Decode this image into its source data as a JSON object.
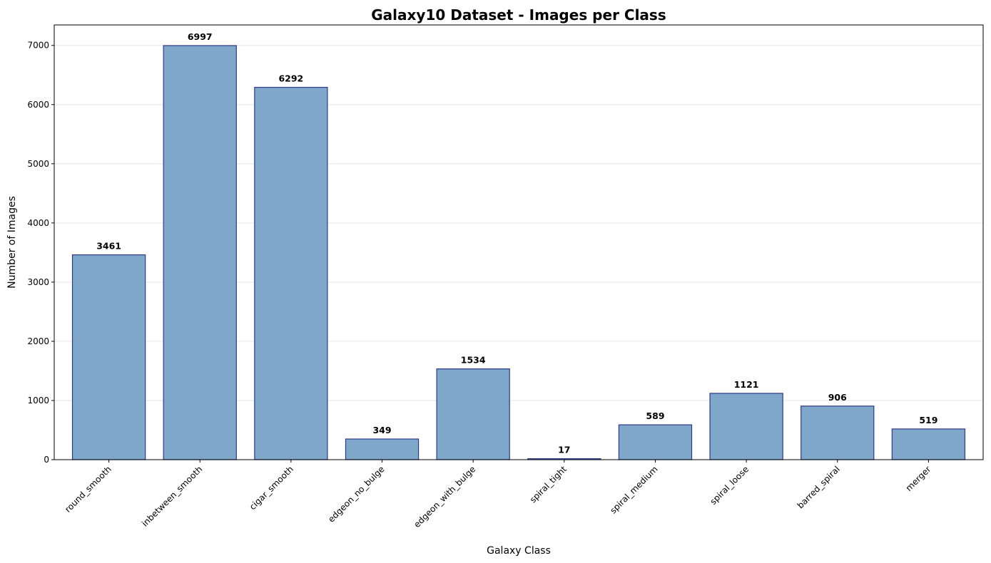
{
  "chart_data": {
    "type": "bar",
    "title": "Galaxy10 Dataset - Images per Class",
    "xlabel": "Galaxy Class",
    "ylabel": "Number of Images",
    "categories": [
      "round_smooth",
      "inbetween_smooth",
      "cigar_smooth",
      "edgeon_no_bulge",
      "edgeon_with_bulge",
      "spiral_tight",
      "spiral_medium",
      "spiral_loose",
      "barred_spiral",
      "merger"
    ],
    "values": [
      3461,
      6997,
      6292,
      349,
      1534,
      17,
      589,
      1121,
      906,
      519
    ],
    "ylim": [
      0,
      7346
    ],
    "yticks": [
      0,
      1000,
      2000,
      3000,
      4000,
      5000,
      6000,
      7000
    ],
    "grid": "y",
    "legend": "none",
    "colors": {
      "bar_fill": "#7ea7ca",
      "bar_edge": "#2e3a8c",
      "grid": "#e6e6e6"
    }
  }
}
